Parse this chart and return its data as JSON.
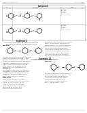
{
  "background_color": "#ffffff",
  "header_left": "US 2011/0021534 A1",
  "header_center": "27",
  "header_right": "Feb. 10, 2011",
  "table_title": "Compound",
  "col1_header": "No.",
  "col2_header": "Structure",
  "col3_header": "Data",
  "row1_no": "13",
  "row2_no": "14",
  "example5_title": "Example 5",
  "example5_sub": "Synthesis of compound 5 or a substituted compound to\ncompound obtained in substituted form in claim",
  "example14_title": "Example 14",
  "example14_sub": "Synthesis of a compound of a substituted to\ncompound obtained in substituted form in claim",
  "abstract_label": "Abstract:",
  "synthesis_label": "Synthesis.",
  "compound_label": "Compound.",
  "grey_text_color": "#888888",
  "dark_text_color": "#222222",
  "mid_text_color": "#555555",
  "line_color": "#aaaaaa",
  "struct_color": "#444444"
}
